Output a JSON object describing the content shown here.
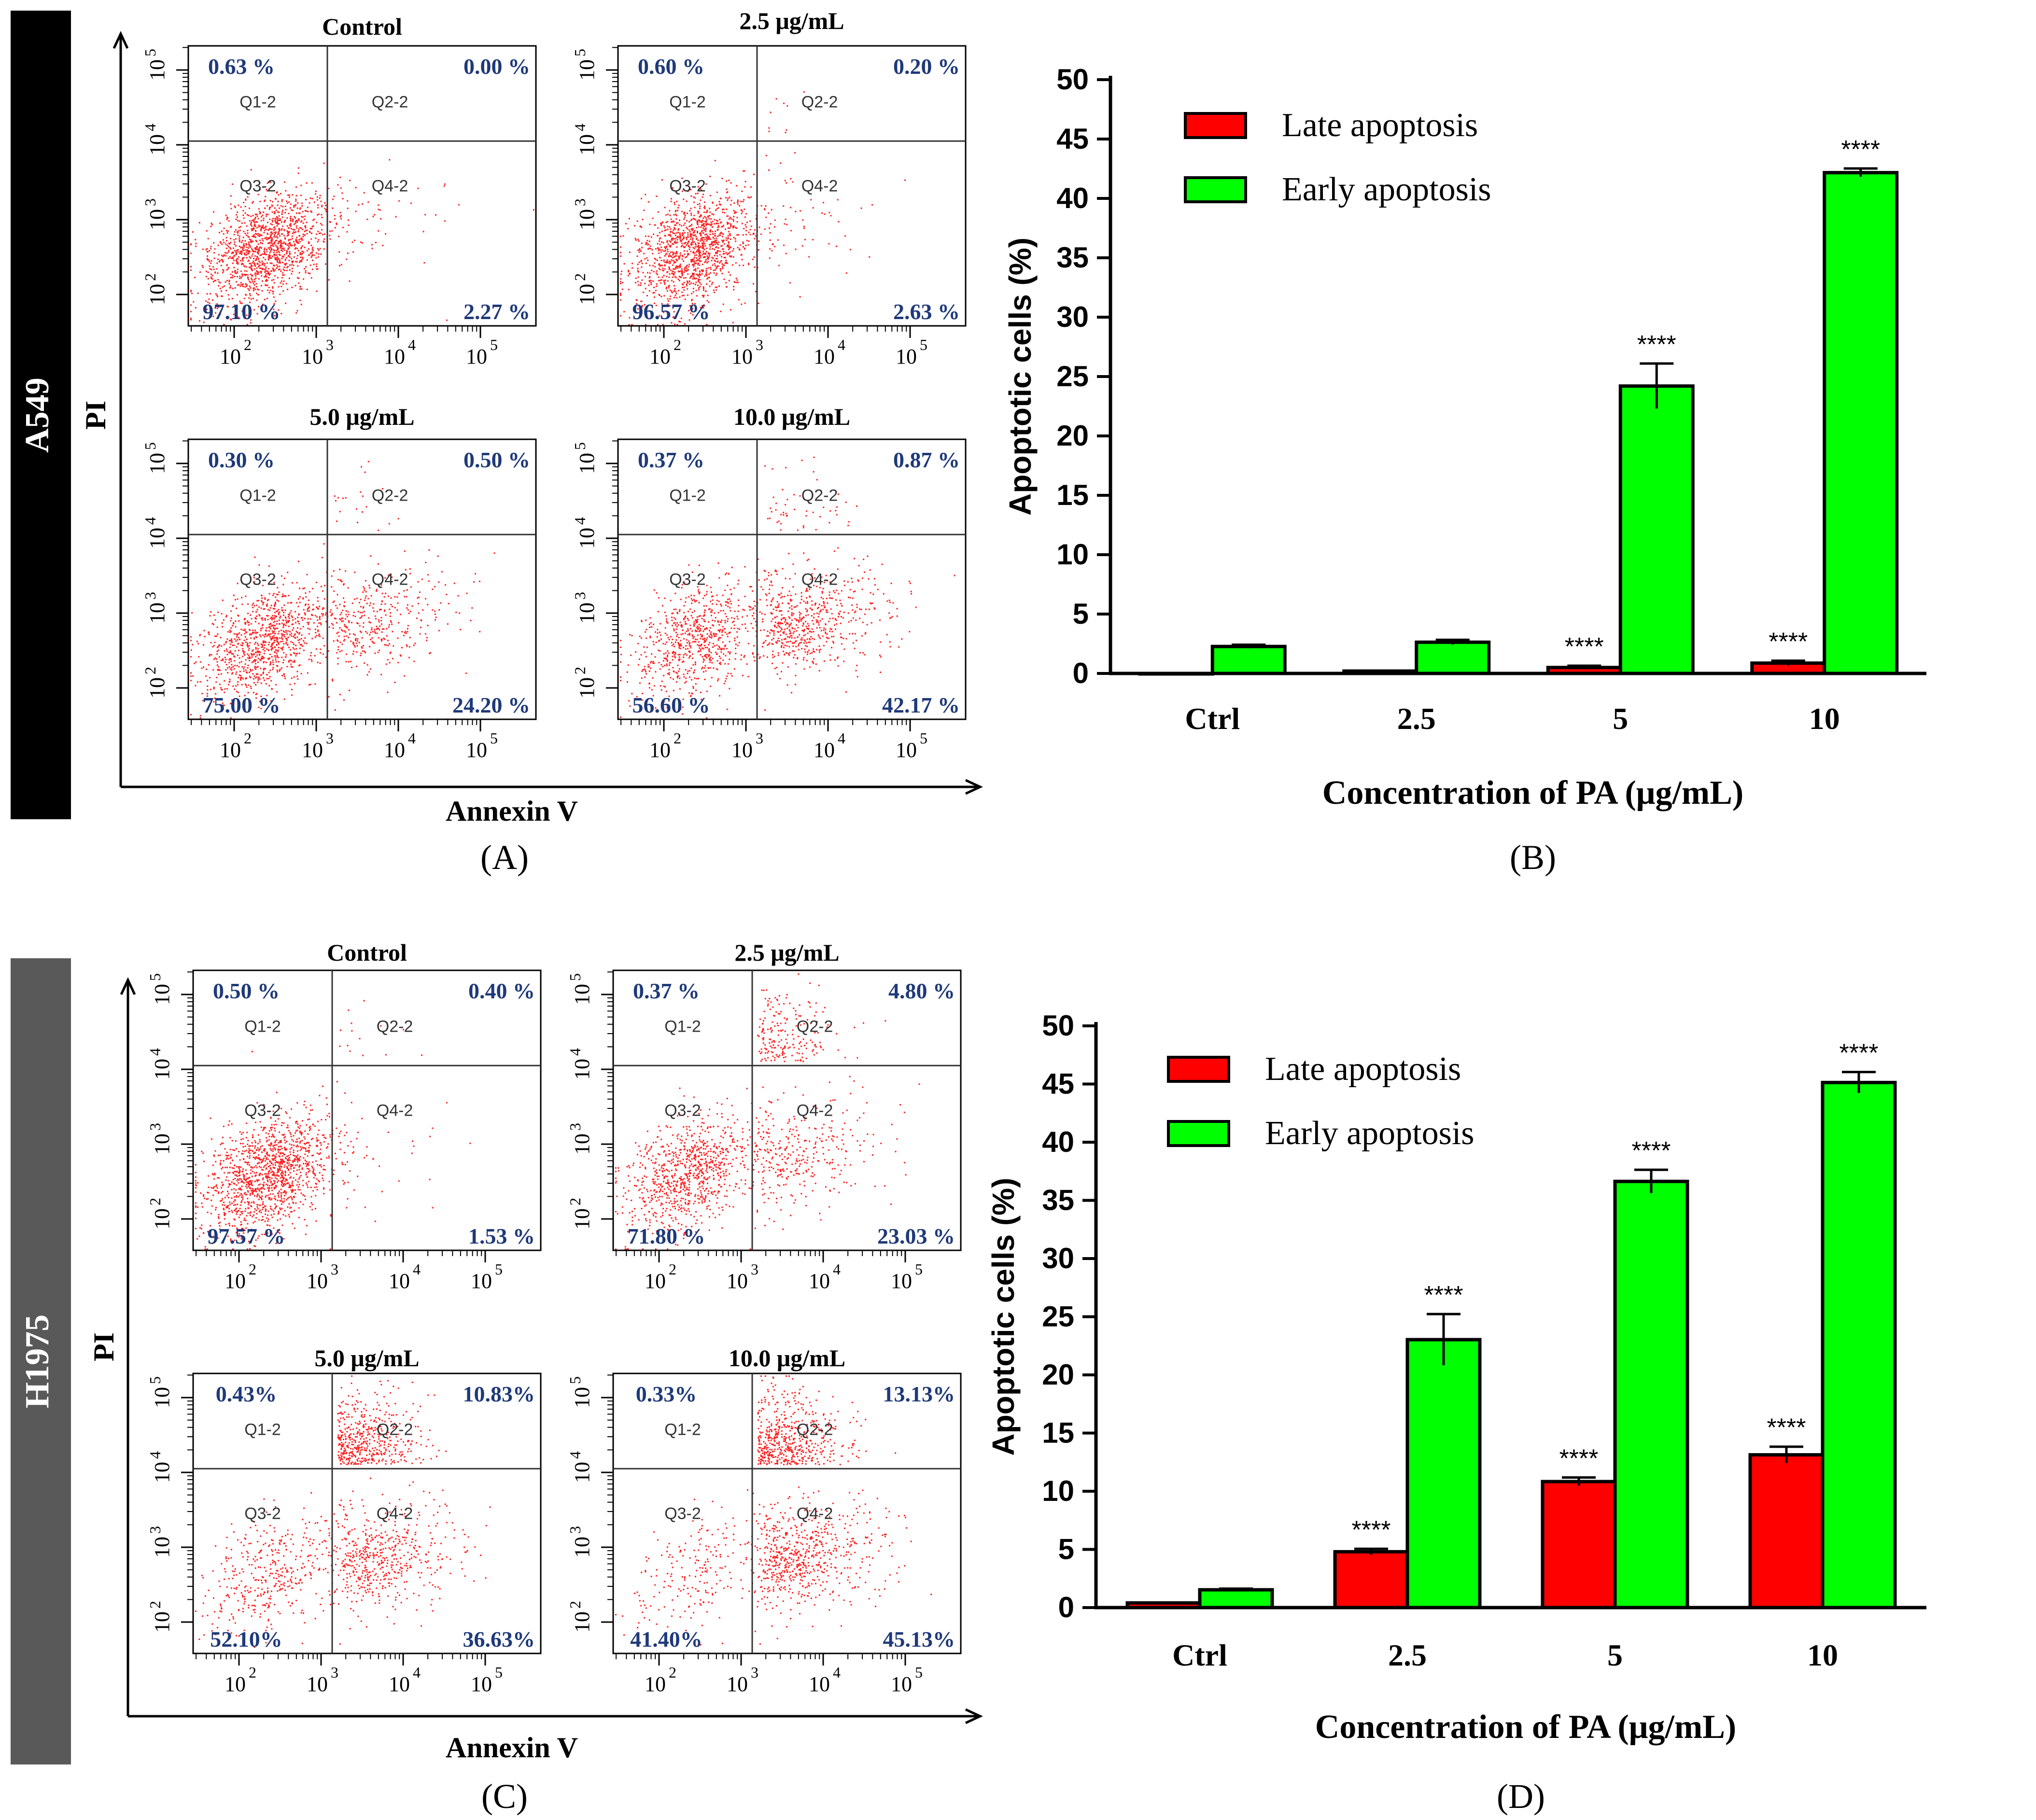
{
  "colors": {
    "late": "#ff0000",
    "early": "#00ff00",
    "quadrant_pct": "#1f3a7a",
    "dots": "#ff2020",
    "a549_band": "#000000",
    "h1975_band": "#595959"
  },
  "panel_labels": {
    "A": "(A)",
    "B": "(B)",
    "C": "(C)",
    "D": "(D)"
  },
  "cell_lines": {
    "a549": "A549",
    "h1975": "H1975"
  },
  "chart_data": [
    {
      "id": "B",
      "type": "bar",
      "categories": [
        "Ctrl",
        "2.5",
        "5",
        "10"
      ],
      "series": [
        {
          "name": "Late apoptosis",
          "values": [
            0.0,
            0.2,
            0.5,
            0.87
          ],
          "errors": [
            0,
            0,
            0.15,
            0.2
          ],
          "stars": [
            "",
            "",
            "****",
            "****"
          ]
        },
        {
          "name": "Early apoptosis",
          "values": [
            2.27,
            2.63,
            24.2,
            42.17
          ],
          "errors": [
            0.15,
            0.2,
            1.9,
            0.35
          ],
          "stars": [
            "",
            "",
            "****",
            "****"
          ]
        }
      ],
      "ylabel": "Apoptotic cells (%)",
      "xlabel": "Concentration of PA (μg/mL)",
      "ylim": [
        0,
        50
      ],
      "yticks": [
        "0",
        "5",
        "10",
        "15",
        "20",
        "25",
        "30",
        "35",
        "40",
        "45",
        "50"
      ]
    },
    {
      "id": "D",
      "type": "bar",
      "categories": [
        "Ctrl",
        "2.5",
        "5",
        "10"
      ],
      "series": [
        {
          "name": "Late apoptosis",
          "values": [
            0.4,
            4.8,
            10.83,
            13.13
          ],
          "errors": [
            0,
            0.25,
            0.35,
            0.7
          ],
          "stars": [
            "",
            "****",
            "****",
            "****"
          ]
        },
        {
          "name": "Early apoptosis",
          "values": [
            1.53,
            23.03,
            36.63,
            45.13
          ],
          "errors": [
            0.1,
            2.2,
            1.0,
            0.9
          ],
          "stars": [
            "",
            "****",
            "****",
            "****"
          ]
        }
      ],
      "ylabel": "Apoptotic cells (%)",
      "xlabel": "Concentration of PA (μg/mL)",
      "ylim": [
        0,
        50
      ],
      "yticks": [
        "0",
        "5",
        "10",
        "15",
        "20",
        "25",
        "30",
        "35",
        "40",
        "45",
        "50"
      ]
    }
  ],
  "flow": {
    "A": {
      "xlabel": "Annexin V",
      "ylabel": "PI",
      "x_ticks": [
        "10",
        "10",
        "10",
        "10"
      ],
      "x_exp": [
        "2",
        "3",
        "4",
        "5"
      ],
      "y_ticks": [
        "10",
        "10",
        "10",
        "10"
      ],
      "y_exp": [
        "2",
        "3",
        "4",
        "5"
      ],
      "plots": [
        {
          "title": "Control",
          "q": [
            "0.63 %",
            "0.00 %",
            "97.10 %",
            "2.27 %"
          ],
          "gates": [
            "Q1-2",
            "Q2-2",
            "Q3-2",
            "Q4-2"
          ]
        },
        {
          "title": "2.5 μg/mL",
          "q": [
            "0.60 %",
            "0.20 %",
            "96.57 %",
            "2.63 %"
          ],
          "gates": [
            "Q1-2",
            "Q2-2",
            "Q3-2",
            "Q4-2"
          ]
        },
        {
          "title": "5.0 μg/mL",
          "q": [
            "0.30 %",
            "0.50 %",
            "75.00 %",
            "24.20 %"
          ],
          "gates": [
            "Q1-2",
            "Q2-2",
            "Q3-2",
            "Q4-2"
          ]
        },
        {
          "title": "10.0 μg/mL",
          "q": [
            "0.37 %",
            "0.87 %",
            "56.60 %",
            "42.17 %"
          ],
          "gates": [
            "Q1-2",
            "Q2-2",
            "Q3-2",
            "Q4-2"
          ]
        }
      ]
    },
    "C": {
      "xlabel": "Annexin V",
      "ylabel": "PI",
      "x_ticks": [
        "10",
        "10",
        "10",
        "10"
      ],
      "x_exp": [
        "2",
        "3",
        "4",
        "5"
      ],
      "y_ticks": [
        "10",
        "10",
        "10",
        "10"
      ],
      "y_exp": [
        "2",
        "3",
        "4",
        "5"
      ],
      "plots": [
        {
          "title": "Control",
          "q": [
            "0.50 %",
            "0.40 %",
            "97.57 %",
            "1.53 %"
          ],
          "gates": [
            "Q1-2",
            "Q2-2",
            "Q3-2",
            "Q4-2"
          ]
        },
        {
          "title": "2.5 μg/mL",
          "q": [
            "0.37 %",
            "4.80 %",
            "71.80 %",
            "23.03 %"
          ],
          "gates": [
            "Q1-2",
            "Q2-2",
            "Q3-2",
            "Q4-2"
          ]
        },
        {
          "title": "5.0 μg/mL",
          "q": [
            "0.43%",
            "10.83%",
            "52.10%",
            "36.63%"
          ],
          "gates": [
            "Q1-2",
            "Q2-2",
            "Q3-2",
            "Q4-2"
          ]
        },
        {
          "title": "10.0 μg/mL",
          "q": [
            "0.33%",
            "13.13%",
            "41.40%",
            "45.13%"
          ],
          "gates": [
            "Q1-2",
            "Q2-2",
            "Q3-2",
            "Q4-2"
          ]
        }
      ]
    }
  }
}
